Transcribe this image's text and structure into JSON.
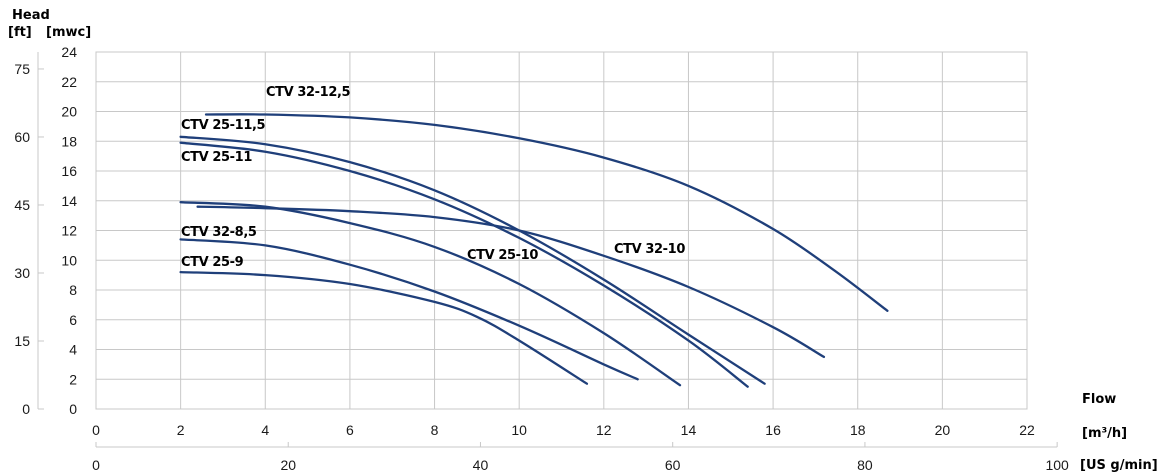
{
  "chart_data": {
    "type": "line",
    "head_title": "Head",
    "y_units_left": "[ft]",
    "y_units_right": "[mwc]",
    "flow_title": "Flow",
    "x_units_primary": "[m³/h]",
    "x_units_secondary": "[US g/min]",
    "xlim": [
      0,
      22
    ],
    "ylim": [
      0,
      24
    ],
    "x_ticks_m3h": [
      0,
      2,
      4,
      6,
      8,
      10,
      12,
      14,
      16,
      18,
      20,
      22
    ],
    "y_ticks_mwc": [
      0,
      2,
      4,
      6,
      8,
      10,
      12,
      14,
      16,
      18,
      20,
      22,
      24
    ],
    "y_ticks_ft": [
      0,
      15,
      30,
      45,
      60,
      75
    ],
    "x_ticks_usgpm": [
      0,
      20,
      40,
      60,
      80,
      100
    ],
    "grid": true,
    "line_color": "#1f3f7a",
    "series": [
      {
        "name": "CTV 32-12,5",
        "x": [
          2.6,
          4,
          6,
          8,
          10,
          12,
          14,
          16,
          17.5,
          18.7
        ],
        "y": [
          19.8,
          19.8,
          19.6,
          19.1,
          18.2,
          16.9,
          15.0,
          12.1,
          9.2,
          6.6
        ]
      },
      {
        "name": "CTV 25-11,5",
        "x": [
          2,
          4,
          6,
          8,
          10,
          12,
          14,
          15.8
        ],
        "y": [
          18.3,
          17.8,
          16.6,
          14.7,
          12.0,
          8.7,
          5.0,
          1.7
        ]
      },
      {
        "name": "CTV 25-11",
        "x": [
          2,
          4,
          6,
          8,
          10,
          12,
          14,
          15.4
        ],
        "y": [
          17.9,
          17.3,
          16.0,
          14.1,
          11.5,
          8.3,
          4.6,
          1.5
        ]
      },
      {
        "name": "CTV 32-10",
        "x": [
          2.4,
          4,
          6,
          8,
          10,
          12,
          14,
          16,
          17.2
        ],
        "y": [
          13.6,
          13.5,
          13.3,
          12.9,
          12.0,
          10.3,
          8.2,
          5.5,
          3.5
        ]
      },
      {
        "name": "CTV 25-10",
        "x": [
          2,
          4,
          6,
          8,
          10,
          12,
          13.8
        ],
        "y": [
          13.9,
          13.6,
          12.5,
          10.9,
          8.4,
          5.1,
          1.6
        ]
      },
      {
        "name": "CTV 32-8,5",
        "x": [
          2,
          4,
          6,
          8,
          10,
          12,
          12.8
        ],
        "y": [
          11.4,
          11.0,
          9.7,
          7.9,
          5.6,
          3.0,
          2.0
        ]
      },
      {
        "name": "CTV 25-9",
        "x": [
          2,
          4,
          6,
          8,
          9,
          10,
          11.6
        ],
        "y": [
          9.2,
          9.0,
          8.4,
          7.2,
          6.2,
          4.6,
          1.7
        ]
      }
    ]
  }
}
